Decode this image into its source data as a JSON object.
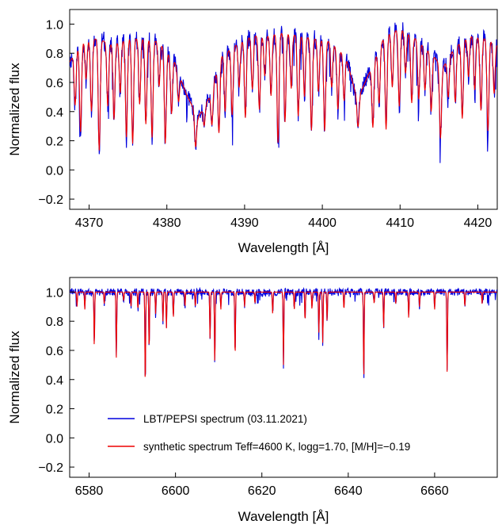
{
  "colors": {
    "observed": "#0000dd",
    "synthetic": "#ee0000"
  },
  "chart_data": [
    {
      "type": "line",
      "xlabel": "Wavelength [Å]",
      "ylabel": "Normalized flux",
      "xlim": [
        4367.5,
        4422.5
      ],
      "ylim": [
        -0.27,
        1.1
      ],
      "xticks": [
        4370,
        4380,
        4390,
        4400,
        4410,
        4420
      ],
      "yticks": [
        -0.2,
        0.0,
        0.2,
        0.4,
        0.6,
        0.8,
        1.0
      ],
      "xtick_labels": [
        "4370",
        "4380",
        "4390",
        "4400",
        "4410",
        "4420"
      ],
      "ytick_labels": [
        "−0.2",
        "0.0",
        "0.2",
        "0.4",
        "0.6",
        "0.8",
        "1.0"
      ],
      "series": [
        {
          "color": "#0000dd"
        },
        {
          "color": "#ee0000"
        }
      ],
      "continuum": [
        [
          4367.5,
          0.74
        ],
        [
          4369,
          0.88
        ],
        [
          4371,
          0.9
        ],
        [
          4373,
          0.86
        ],
        [
          4375,
          0.9
        ],
        [
          4377,
          0.9
        ],
        [
          4379,
          0.88
        ],
        [
          4381,
          0.74
        ],
        [
          4382.5,
          0.52
        ],
        [
          4384,
          0.36
        ],
        [
          4385.5,
          0.5
        ],
        [
          4387,
          0.78
        ],
        [
          4389,
          0.86
        ],
        [
          4391,
          0.92
        ],
        [
          4393,
          0.92
        ],
        [
          4395,
          0.94
        ],
        [
          4397,
          0.92
        ],
        [
          4399,
          0.9
        ],
        [
          4401,
          0.88
        ],
        [
          4403,
          0.78
        ],
        [
          4404.5,
          0.48
        ],
        [
          4406,
          0.66
        ],
        [
          4408,
          0.92
        ],
        [
          4410,
          0.97
        ],
        [
          4412,
          0.9
        ],
        [
          4414,
          0.8
        ],
        [
          4415.5,
          0.7
        ],
        [
          4417,
          0.84
        ],
        [
          4419,
          0.92
        ],
        [
          4421,
          0.9
        ],
        [
          4422.5,
          0.86
        ]
      ],
      "lines": [
        {
          "x": 4368.2,
          "depth": 0.45
        },
        {
          "x": 4368.9,
          "depth": 0.7
        },
        {
          "x": 4369.6,
          "depth": 0.3
        },
        {
          "x": 4370.3,
          "depth": 0.55
        },
        {
          "x": 4371.3,
          "depth": 0.85
        },
        {
          "x": 4372.4,
          "depth": 0.5
        },
        {
          "x": 4373.2,
          "depth": 0.6
        },
        {
          "x": 4374.0,
          "depth": 0.4
        },
        {
          "x": 4374.8,
          "depth": 0.75
        },
        {
          "x": 4375.6,
          "depth": 0.8
        },
        {
          "x": 4376.5,
          "depth": 0.5
        },
        {
          "x": 4377.3,
          "depth": 0.65
        },
        {
          "x": 4378.1,
          "depth": 0.75
        },
        {
          "x": 4379.0,
          "depth": 0.35
        },
        {
          "x": 4379.8,
          "depth": 0.78
        },
        {
          "x": 4380.6,
          "depth": 0.5
        },
        {
          "x": 4381.5,
          "depth": 0.3
        },
        {
          "x": 4383.7,
          "depth": 0.6
        },
        {
          "x": 4384.8,
          "depth": 0.3
        },
        {
          "x": 4385.8,
          "depth": 0.45
        },
        {
          "x": 4386.7,
          "depth": 0.65
        },
        {
          "x": 4387.5,
          "depth": 0.5
        },
        {
          "x": 4388.4,
          "depth": 0.55
        },
        {
          "x": 4389.3,
          "depth": 0.35
        },
        {
          "x": 4390.1,
          "depth": 0.6
        },
        {
          "x": 4391.0,
          "depth": 0.4
        },
        {
          "x": 4391.9,
          "depth": 0.55
        },
        {
          "x": 4392.6,
          "depth": 0.3
        },
        {
          "x": 4393.4,
          "depth": 0.45
        },
        {
          "x": 4394.3,
          "depth": 0.8
        },
        {
          "x": 4395.2,
          "depth": 0.65
        },
        {
          "x": 4396.0,
          "depth": 0.4
        },
        {
          "x": 4396.9,
          "depth": 0.6
        },
        {
          "x": 4397.7,
          "depth": 0.45
        },
        {
          "x": 4398.6,
          "depth": 0.7
        },
        {
          "x": 4399.5,
          "depth": 0.4
        },
        {
          "x": 4400.3,
          "depth": 0.7
        },
        {
          "x": 4401.2,
          "depth": 0.35
        },
        {
          "x": 4402.0,
          "depth": 0.5
        },
        {
          "x": 4402.8,
          "depth": 0.4
        },
        {
          "x": 4404.6,
          "depth": 0.4
        },
        {
          "x": 4406.5,
          "depth": 0.6
        },
        {
          "x": 4407.3,
          "depth": 0.45
        },
        {
          "x": 4408.2,
          "depth": 0.7
        },
        {
          "x": 4409.0,
          "depth": 0.4
        },
        {
          "x": 4409.9,
          "depth": 0.55
        },
        {
          "x": 4410.7,
          "depth": 0.3
        },
        {
          "x": 4411.5,
          "depth": 0.5
        },
        {
          "x": 4412.4,
          "depth": 0.45
        },
        {
          "x": 4413.2,
          "depth": 0.35
        },
        {
          "x": 4414.0,
          "depth": 0.5
        },
        {
          "x": 4415.2,
          "depth": 0.7
        },
        {
          "x": 4416.2,
          "depth": 0.35
        },
        {
          "x": 4417.1,
          "depth": 0.45
        },
        {
          "x": 4418.0,
          "depth": 0.6
        },
        {
          "x": 4418.8,
          "depth": 0.3
        },
        {
          "x": 4419.6,
          "depth": 0.4
        },
        {
          "x": 4420.4,
          "depth": 0.55
        },
        {
          "x": 4421.3,
          "depth": 0.7
        },
        {
          "x": 4422.1,
          "depth": 0.4
        }
      ]
    },
    {
      "type": "line",
      "xlabel": "Wavelength [Å]",
      "ylabel": "Normalized flux",
      "xlim": [
        6575.5,
        6674.5
      ],
      "ylim": [
        -0.27,
        1.1
      ],
      "xticks": [
        6580,
        6600,
        6620,
        6640,
        6660
      ],
      "yticks": [
        -0.2,
        0.0,
        0.2,
        0.4,
        0.6,
        0.8,
        1.0
      ],
      "xtick_labels": [
        "6580",
        "6600",
        "6620",
        "6640",
        "6660"
      ],
      "ytick_labels": [
        "−0.2",
        "0.0",
        "0.2",
        "0.4",
        "0.6",
        "0.8",
        "1.0"
      ],
      "legend_placement": "lower-right",
      "series": [
        {
          "name": "LBT/PEPSI spectrum (03.11.2021)",
          "color": "#0000dd"
        },
        {
          "name": "synthetic spectrum Teff=4600 K, logg=1.70, [M/H]=−0.19",
          "color": "#ee0000"
        }
      ],
      "lines": [
        {
          "x": 6577.2,
          "depth": 0.1
        },
        {
          "x": 6579.0,
          "depth": 0.12
        },
        {
          "x": 6581.2,
          "depth": 0.38
        },
        {
          "x": 6583.5,
          "depth": 0.08
        },
        {
          "x": 6586.3,
          "depth": 0.45
        },
        {
          "x": 6588.0,
          "depth": 0.06
        },
        {
          "x": 6589.7,
          "depth": 0.1
        },
        {
          "x": 6591.3,
          "depth": 0.12
        },
        {
          "x": 6593.0,
          "depth": 0.65
        },
        {
          "x": 6593.9,
          "depth": 0.4
        },
        {
          "x": 6595.4,
          "depth": 0.15
        },
        {
          "x": 6597.1,
          "depth": 0.2
        },
        {
          "x": 6597.9,
          "depth": 0.25
        },
        {
          "x": 6599.5,
          "depth": 0.18
        },
        {
          "x": 6602.2,
          "depth": 0.1
        },
        {
          "x": 6604.6,
          "depth": 0.1
        },
        {
          "x": 6608.0,
          "depth": 0.32
        },
        {
          "x": 6609.1,
          "depth": 0.5
        },
        {
          "x": 6610.5,
          "depth": 0.12
        },
        {
          "x": 6613.8,
          "depth": 0.45
        },
        {
          "x": 6616.0,
          "depth": 0.1
        },
        {
          "x": 6618.4,
          "depth": 0.08
        },
        {
          "x": 6622.5,
          "depth": 0.15
        },
        {
          "x": 6625.0,
          "depth": 0.5
        },
        {
          "x": 6627.5,
          "depth": 0.12
        },
        {
          "x": 6630.0,
          "depth": 0.2
        },
        {
          "x": 6631.6,
          "depth": 0.12
        },
        {
          "x": 6633.2,
          "depth": 0.28
        },
        {
          "x": 6634.1,
          "depth": 0.35
        },
        {
          "x": 6635.1,
          "depth": 0.2
        },
        {
          "x": 6639.0,
          "depth": 0.12
        },
        {
          "x": 6643.6,
          "depth": 0.6
        },
        {
          "x": 6646.0,
          "depth": 0.08
        },
        {
          "x": 6648.2,
          "depth": 0.25
        },
        {
          "x": 6651.0,
          "depth": 0.08
        },
        {
          "x": 6654.0,
          "depth": 0.18
        },
        {
          "x": 6656.5,
          "depth": 0.1
        },
        {
          "x": 6660.0,
          "depth": 0.12
        },
        {
          "x": 6662.9,
          "depth": 0.55
        },
        {
          "x": 6667.0,
          "depth": 0.1
        },
        {
          "x": 6671.0,
          "depth": 0.08
        }
      ]
    }
  ]
}
